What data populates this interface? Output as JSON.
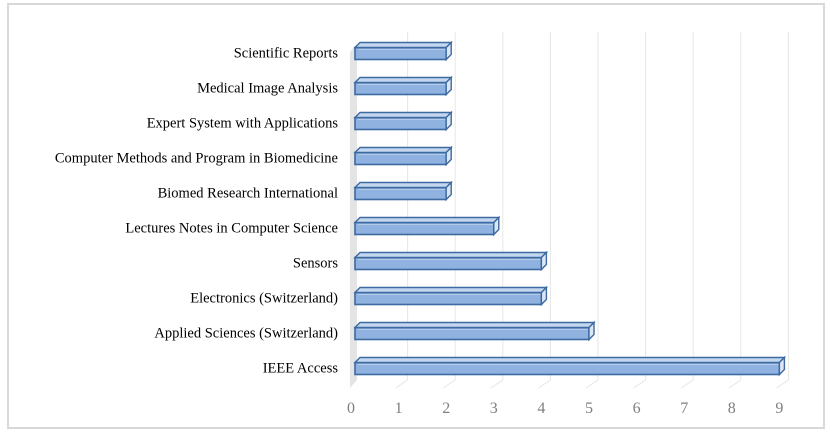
{
  "chart_data": {
    "type": "bar",
    "orientation": "horizontal",
    "style": "3d-clustered-bar",
    "title": "",
    "xlabel": "",
    "ylabel": "",
    "categories": [
      "IEEE Access",
      "Applied Sciences (Switzerland)",
      "Electronics (Switzerland)",
      "Sensors",
      "Lectures Notes in Computer Science",
      "Biomed Research International",
      "Computer Methods and Program in Biomedicine",
      "Expert System with Applications",
      "Medical Image Analysis",
      "Scientific Reports"
    ],
    "values": [
      9,
      5,
      4,
      4,
      3,
      2,
      2,
      2,
      2,
      2
    ],
    "xlim": [
      0,
      9
    ],
    "x_ticks": [
      "0",
      "1",
      "2",
      "3",
      "4",
      "5",
      "6",
      "7",
      "8",
      "9"
    ],
    "grid": true,
    "legend": "none",
    "colors": {
      "bar_fill": "#8fb2e0",
      "bar_top": "#c5d7ef",
      "bar_side": "#dce7f5",
      "bar_edge": "#3d6aa0",
      "grid": "#e6e6e6",
      "floor_wall": "#e4e4e4",
      "tick_text": "#7f7f7f",
      "frame": "#d9d9d9"
    }
  }
}
